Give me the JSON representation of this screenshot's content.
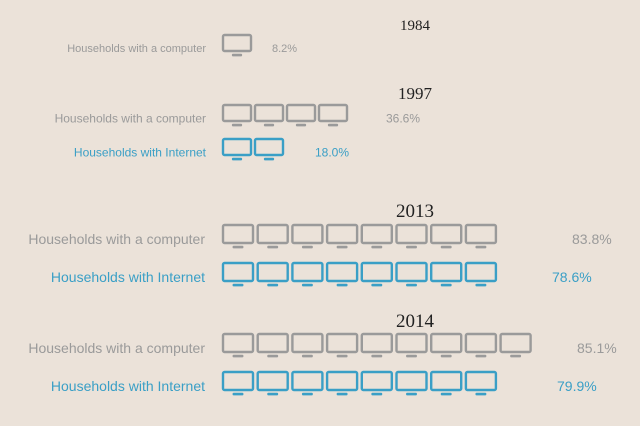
{
  "chart_data": {
    "type": "pictograph",
    "colors": {
      "background": "#ebe2d9",
      "computer": "#9a9a9a",
      "internet": "#3a9fc6",
      "year": "#222222"
    },
    "icon": "monitor-icon",
    "years": [
      {
        "year": "1984",
        "rows": [
          {
            "series": "computer",
            "label": "Households with a computer",
            "value": 8.2,
            "value_label": "8.2%"
          }
        ]
      },
      {
        "year": "1997",
        "rows": [
          {
            "series": "computer",
            "label": "Households with a computer",
            "value": 36.6,
            "value_label": "36.6%"
          },
          {
            "series": "internet",
            "label": "Households with Internet",
            "value": 18.0,
            "value_label": "18.0%"
          }
        ]
      },
      {
        "year": "2013",
        "rows": [
          {
            "series": "computer",
            "label": "Households with a computer",
            "value": 83.8,
            "value_label": "83.8%"
          },
          {
            "series": "internet",
            "label": "Households with Internet",
            "value": 78.6,
            "value_label": "78.6%"
          }
        ]
      },
      {
        "year": "2014",
        "rows": [
          {
            "series": "computer",
            "label": "Households with a computer",
            "value": 85.1,
            "value_label": "85.1%"
          },
          {
            "series": "internet",
            "label": "Households with Internet",
            "value": 79.9,
            "value_label": "79.9%"
          }
        ]
      }
    ]
  }
}
